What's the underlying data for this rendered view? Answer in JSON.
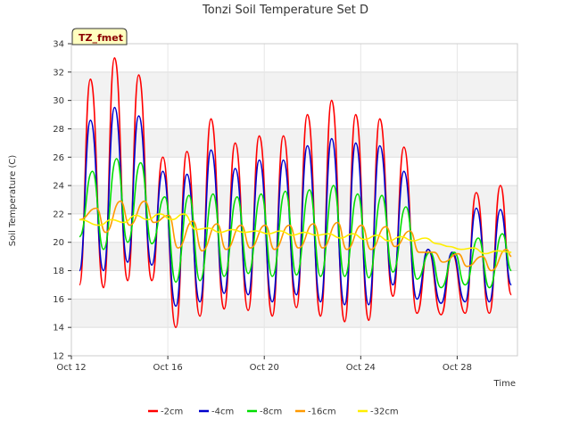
{
  "chart_data": {
    "type": "line",
    "title": "Tonzi Soil Temperature Set D",
    "xlabel": "Time",
    "ylabel": "Soil Temperature (C)",
    "badge": "TZ_fmet",
    "ylim": [
      12,
      34
    ],
    "yticks": [
      12,
      14,
      16,
      18,
      20,
      22,
      24,
      26,
      28,
      30,
      32,
      34
    ],
    "xlim": [
      "2010-10-12",
      "2010-10-30 12:00"
    ],
    "xticks": [
      {
        "t": "2010-10-12",
        "label": "Oct 12"
      },
      {
        "t": "2010-10-16",
        "label": "Oct 16"
      },
      {
        "t": "2010-10-20",
        "label": "Oct 20"
      },
      {
        "t": "2010-10-24",
        "label": "Oct 24"
      },
      {
        "t": "2010-10-28",
        "label": "Oct 28"
      }
    ],
    "grid": "horizontal alternating bands",
    "legend_position": "bottom",
    "series": [
      {
        "name": "-2cm",
        "color": "#ff0000",
        "x": [
          "2010-10-12 08:00",
          "2010-10-12 19:00",
          "2010-10-13 08:00",
          "2010-10-13 19:00",
          "2010-10-14 08:00",
          "2010-10-14 19:00",
          "2010-10-15 08:00",
          "2010-10-15 19:00",
          "2010-10-16 08:00",
          "2010-10-16 19:00",
          "2010-10-17 08:00",
          "2010-10-17 19:00",
          "2010-10-18 08:00",
          "2010-10-18 19:00",
          "2010-10-19 08:00",
          "2010-10-19 19:00",
          "2010-10-20 08:00",
          "2010-10-20 19:00",
          "2010-10-21 08:00",
          "2010-10-21 19:00",
          "2010-10-22 08:00",
          "2010-10-22 19:00",
          "2010-10-23 08:00",
          "2010-10-23 19:00",
          "2010-10-24 08:00",
          "2010-10-24 19:00",
          "2010-10-25 08:00",
          "2010-10-25 19:00",
          "2010-10-26 08:00",
          "2010-10-26 19:00",
          "2010-10-27 08:00",
          "2010-10-27 19:00",
          "2010-10-28 08:00",
          "2010-10-28 19:00",
          "2010-10-29 08:00",
          "2010-10-29 19:00",
          "2010-10-30 06:00"
        ],
        "y": [
          17.0,
          31.5,
          16.8,
          33.0,
          17.3,
          31.8,
          17.3,
          26.0,
          14.0,
          26.4,
          14.8,
          28.7,
          15.3,
          27.0,
          15.2,
          27.5,
          14.8,
          27.5,
          15.4,
          29.0,
          14.8,
          30.0,
          14.4,
          29.0,
          14.5,
          28.7,
          16.2,
          26.7,
          15.0,
          19.5,
          14.9,
          19.2,
          15.0,
          23.5,
          15.0,
          24.0,
          16.3
        ]
      },
      {
        "name": "-4cm",
        "color": "#0000cc",
        "x": [
          "2010-10-12 08:00",
          "2010-10-12 19:00",
          "2010-10-13 08:00",
          "2010-10-13 19:00",
          "2010-10-14 08:00",
          "2010-10-14 19:00",
          "2010-10-15 08:00",
          "2010-10-15 19:00",
          "2010-10-16 08:00",
          "2010-10-16 19:00",
          "2010-10-17 08:00",
          "2010-10-17 19:00",
          "2010-10-18 08:00",
          "2010-10-18 19:00",
          "2010-10-19 08:00",
          "2010-10-19 19:00",
          "2010-10-20 08:00",
          "2010-10-20 19:00",
          "2010-10-21 08:00",
          "2010-10-21 19:00",
          "2010-10-22 08:00",
          "2010-10-22 19:00",
          "2010-10-23 08:00",
          "2010-10-23 19:00",
          "2010-10-24 08:00",
          "2010-10-24 19:00",
          "2010-10-25 08:00",
          "2010-10-25 19:00",
          "2010-10-26 08:00",
          "2010-10-26 19:00",
          "2010-10-27 08:00",
          "2010-10-27 19:00",
          "2010-10-28 08:00",
          "2010-10-28 19:00",
          "2010-10-29 08:00",
          "2010-10-29 19:00",
          "2010-10-30 06:00"
        ],
        "y": [
          18.0,
          28.6,
          18.0,
          29.5,
          18.6,
          28.9,
          18.4,
          25.0,
          15.5,
          24.8,
          15.8,
          26.5,
          16.4,
          25.2,
          16.3,
          25.8,
          15.8,
          25.8,
          16.3,
          26.8,
          15.8,
          27.3,
          15.6,
          27.0,
          15.6,
          26.8,
          17.0,
          25.0,
          16.0,
          19.5,
          15.7,
          19.3,
          15.8,
          22.4,
          15.8,
          22.3,
          17.0
        ]
      },
      {
        "name": "-8cm",
        "color": "#00dd00",
        "x": [
          "2010-10-12 08:00",
          "2010-10-12 21:00",
          "2010-10-13 08:00",
          "2010-10-13 21:00",
          "2010-10-14 08:00",
          "2010-10-14 21:00",
          "2010-10-15 08:00",
          "2010-10-15 21:00",
          "2010-10-16 08:00",
          "2010-10-16 21:00",
          "2010-10-17 08:00",
          "2010-10-17 21:00",
          "2010-10-18 08:00",
          "2010-10-18 21:00",
          "2010-10-19 08:00",
          "2010-10-19 21:00",
          "2010-10-20 08:00",
          "2010-10-20 21:00",
          "2010-10-21 08:00",
          "2010-10-21 21:00",
          "2010-10-22 08:00",
          "2010-10-22 21:00",
          "2010-10-23 08:00",
          "2010-10-23 21:00",
          "2010-10-24 08:00",
          "2010-10-24 21:00",
          "2010-10-25 08:00",
          "2010-10-25 21:00",
          "2010-10-26 08:00",
          "2010-10-26 21:00",
          "2010-10-27 08:00",
          "2010-10-27 21:00",
          "2010-10-28 08:00",
          "2010-10-28 21:00",
          "2010-10-29 08:00",
          "2010-10-29 21:00",
          "2010-10-30 06:00"
        ],
        "y": [
          20.4,
          25.0,
          19.5,
          25.9,
          20.0,
          25.6,
          19.9,
          23.2,
          17.2,
          23.3,
          17.3,
          23.4,
          17.6,
          23.2,
          17.8,
          23.4,
          17.6,
          23.6,
          17.7,
          23.7,
          17.6,
          24.0,
          17.6,
          23.4,
          17.5,
          23.3,
          17.9,
          22.5,
          17.4,
          19.3,
          16.8,
          19.3,
          17.0,
          20.3,
          16.8,
          20.6,
          18.0
        ]
      },
      {
        "name": "-16cm",
        "color": "#ff9900",
        "x": [
          "2010-10-12 08:00",
          "2010-10-13 01:00",
          "2010-10-13 10:00",
          "2010-10-14 01:00",
          "2010-10-14 10:00",
          "2010-10-15 01:00",
          "2010-10-15 10:00",
          "2010-10-16 01:00",
          "2010-10-16 10:00",
          "2010-10-17 01:00",
          "2010-10-17 10:00",
          "2010-10-18 01:00",
          "2010-10-18 10:00",
          "2010-10-19 01:00",
          "2010-10-19 10:00",
          "2010-10-20 01:00",
          "2010-10-20 10:00",
          "2010-10-21 01:00",
          "2010-10-21 10:00",
          "2010-10-22 01:00",
          "2010-10-22 10:00",
          "2010-10-23 01:00",
          "2010-10-23 10:00",
          "2010-10-24 01:00",
          "2010-10-24 10:00",
          "2010-10-25 01:00",
          "2010-10-25 10:00",
          "2010-10-26 01:00",
          "2010-10-26 10:00",
          "2010-10-27 01:00",
          "2010-10-27 10:00",
          "2010-10-28 01:00",
          "2010-10-28 10:00",
          "2010-10-29 01:00",
          "2010-10-29 10:00",
          "2010-10-30 01:00",
          "2010-10-30 06:00"
        ],
        "y": [
          21.6,
          22.4,
          20.7,
          22.9,
          21.2,
          22.9,
          21.4,
          21.9,
          19.6,
          21.5,
          19.4,
          21.3,
          19.5,
          21.2,
          19.6,
          21.2,
          19.5,
          21.2,
          19.6,
          21.3,
          19.6,
          21.4,
          19.5,
          21.2,
          19.5,
          21.1,
          19.7,
          20.8,
          19.3,
          19.3,
          18.6,
          19.2,
          18.3,
          19.0,
          18.0,
          19.5,
          19.0
        ]
      },
      {
        "name": "-32cm",
        "color": "#ffee00",
        "x": [
          "2010-10-12 08:00",
          "2010-10-13 04:00",
          "2010-10-13 16:00",
          "2010-10-14 04:00",
          "2010-10-14 16:00",
          "2010-10-15 04:00",
          "2010-10-15 16:00",
          "2010-10-16 04:00",
          "2010-10-16 16:00",
          "2010-10-17 04:00",
          "2010-10-17 16:00",
          "2010-10-18 04:00",
          "2010-10-18 16:00",
          "2010-10-19 04:00",
          "2010-10-19 16:00",
          "2010-10-20 04:00",
          "2010-10-20 16:00",
          "2010-10-21 04:00",
          "2010-10-21 16:00",
          "2010-10-22 04:00",
          "2010-10-22 16:00",
          "2010-10-23 04:00",
          "2010-10-23 16:00",
          "2010-10-24 04:00",
          "2010-10-24 16:00",
          "2010-10-25 04:00",
          "2010-10-25 16:00",
          "2010-10-26 04:00",
          "2010-10-26 16:00",
          "2010-10-27 04:00",
          "2010-10-27 16:00",
          "2010-10-28 04:00",
          "2010-10-28 16:00",
          "2010-10-29 04:00",
          "2010-10-29 16:00",
          "2010-10-30 06:00"
        ],
        "y": [
          21.6,
          21.2,
          21.6,
          21.4,
          21.9,
          21.6,
          22.0,
          21.6,
          22.0,
          20.9,
          21.0,
          20.7,
          20.9,
          20.7,
          20.8,
          20.6,
          20.8,
          20.5,
          20.7,
          20.5,
          20.6,
          20.3,
          20.6,
          20.2,
          20.5,
          20.1,
          20.4,
          20.1,
          20.3,
          19.9,
          19.7,
          19.5,
          19.6,
          19.2,
          19.4,
          19.3
        ]
      }
    ]
  }
}
